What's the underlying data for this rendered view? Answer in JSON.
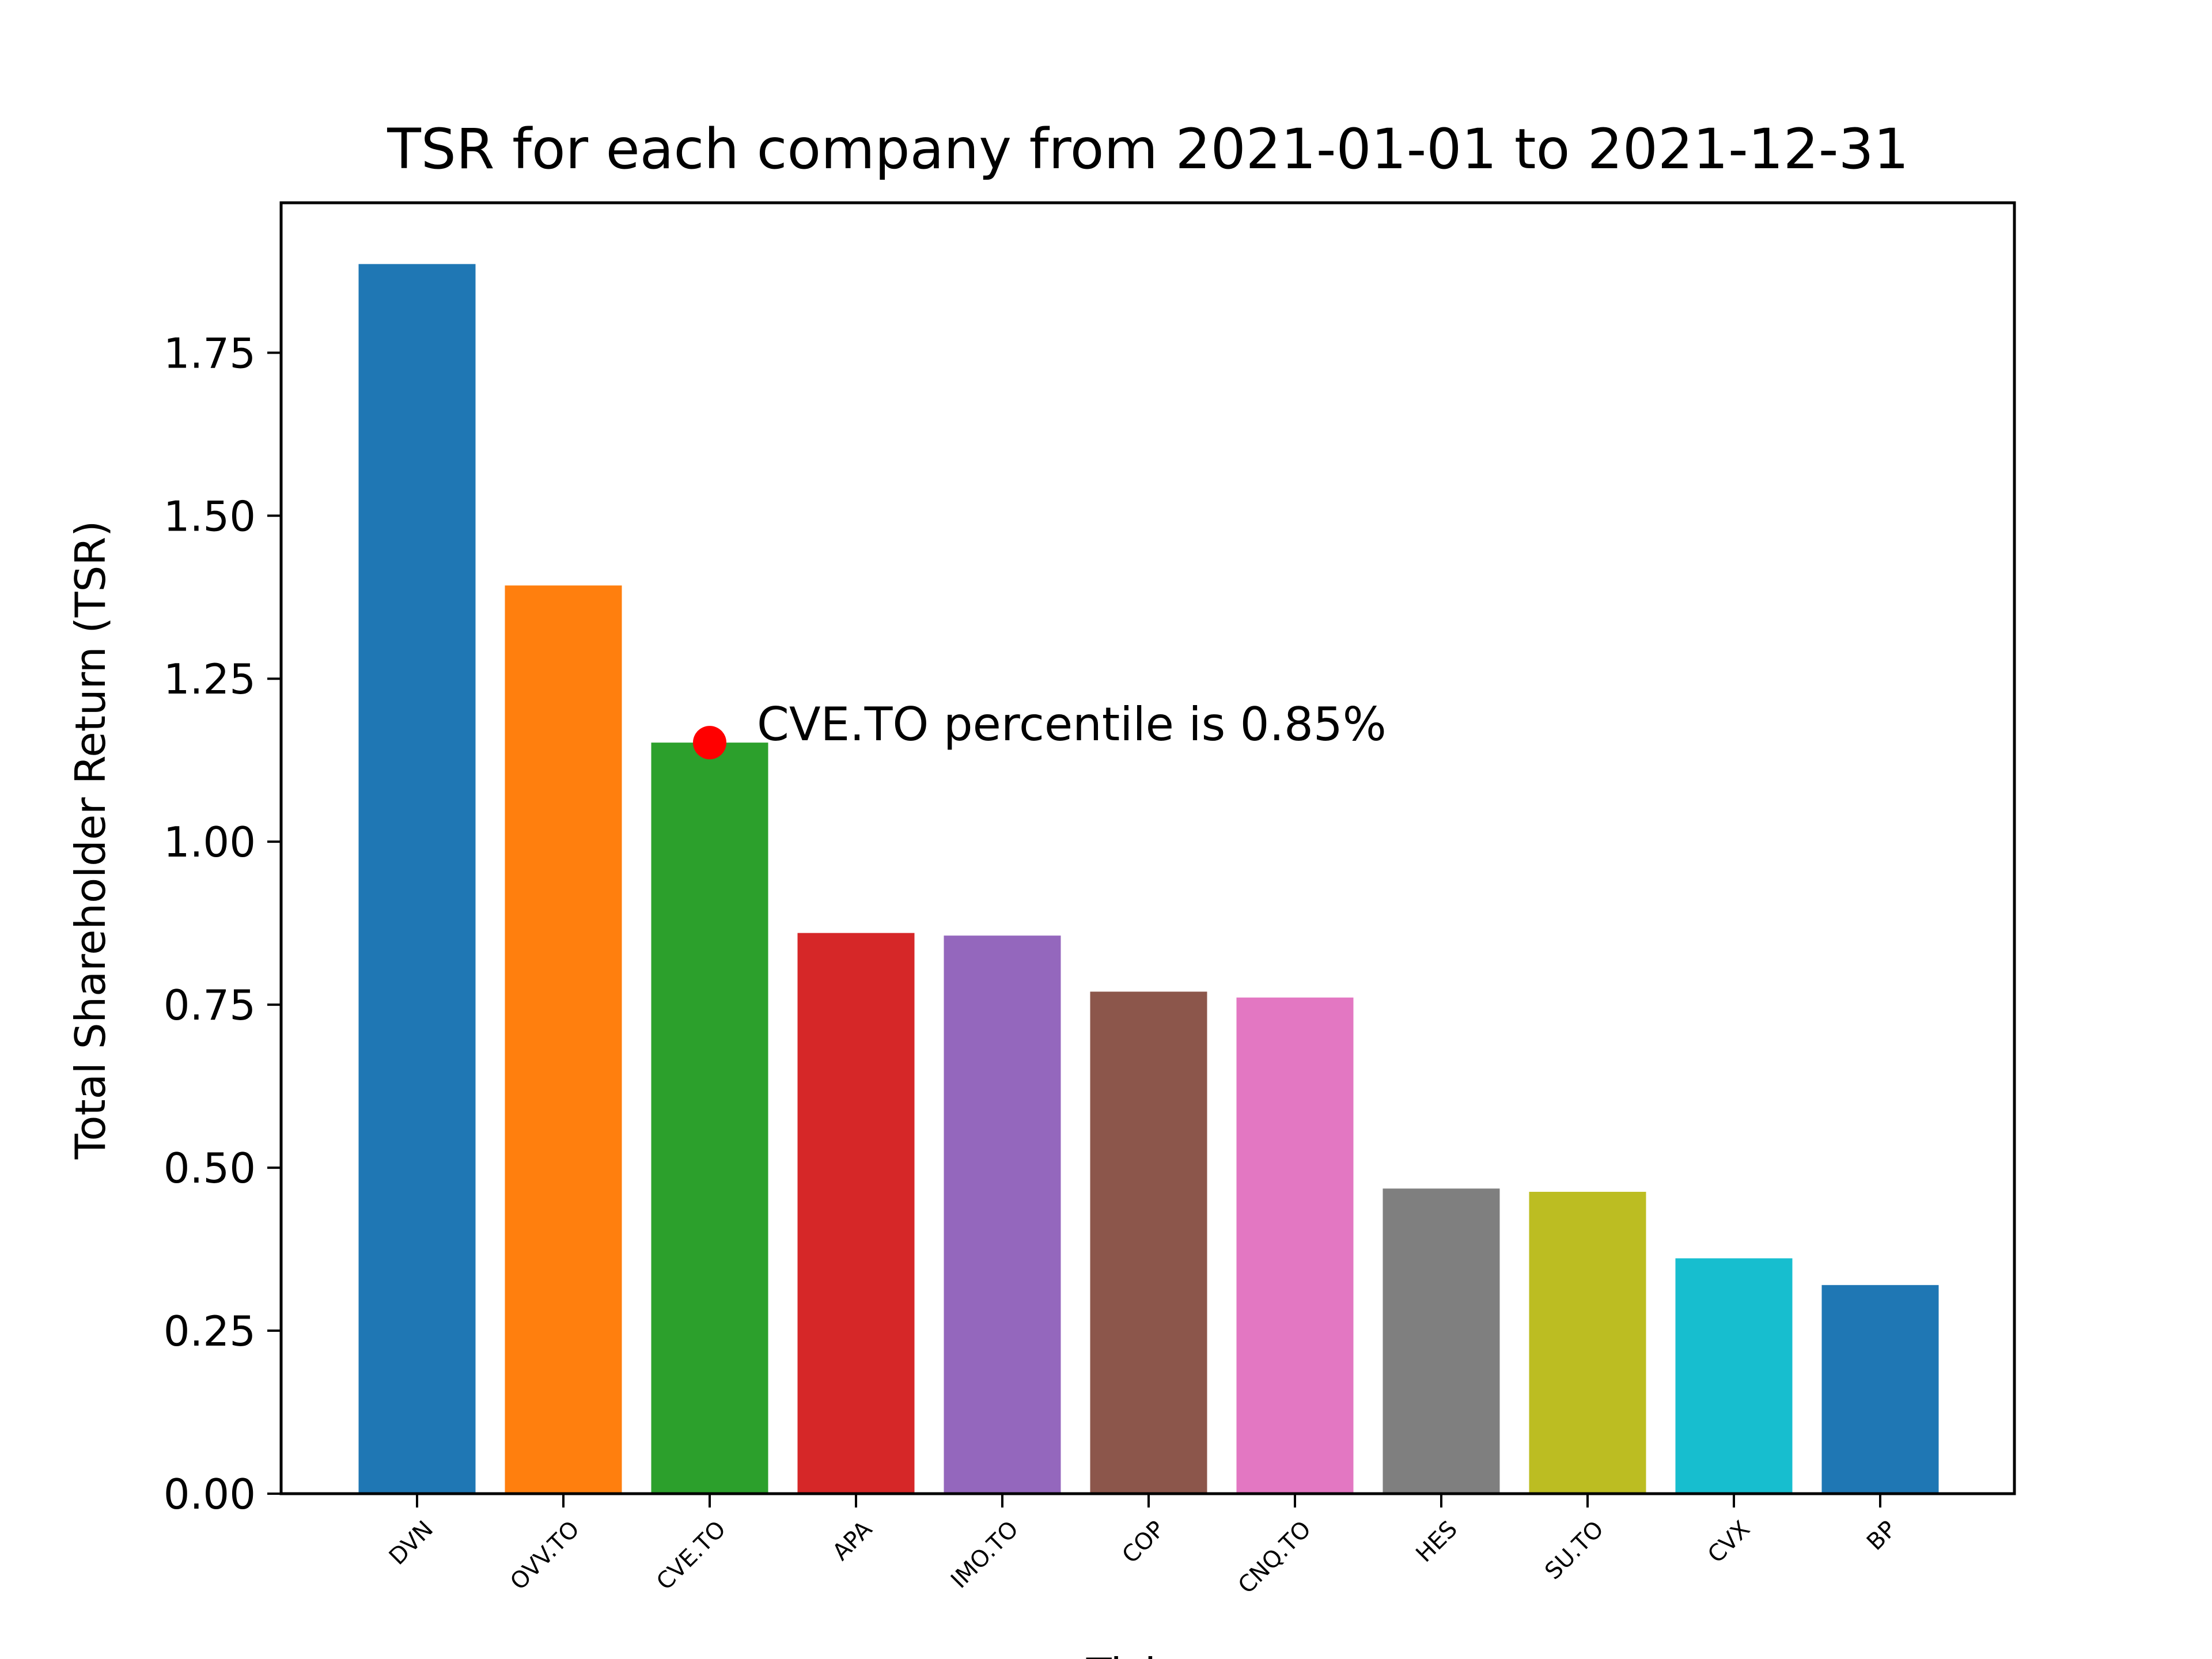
{
  "chart_data": {
    "type": "bar",
    "title": "TSR for each company from 2021-01-01 to 2021-12-31",
    "xlabel": "Ticker",
    "ylabel": "Total Shareholder Return (TSR)",
    "categories": [
      "DVN",
      "OVV.TO",
      "CVE.TO",
      "APA",
      "IMO.TO",
      "COP",
      "CNQ.TO",
      "HES",
      "SU.TO",
      "CVX",
      "BP"
    ],
    "values": [
      1.886,
      1.393,
      1.152,
      0.86,
      0.856,
      0.77,
      0.761,
      0.468,
      0.463,
      0.361,
      0.32
    ],
    "colors": [
      "#1f77b4",
      "#ff7f0e",
      "#2ca02c",
      "#d62728",
      "#9467bd",
      "#8c564b",
      "#e377c2",
      "#7f7f7f",
      "#bcbd22",
      "#17becf",
      "#1f77b4"
    ],
    "ylim": [
      0,
      1.98
    ],
    "yticks": [
      "0.00",
      "0.25",
      "0.50",
      "0.75",
      "1.00",
      "1.25",
      "1.50",
      "1.75"
    ],
    "grid": false,
    "highlight": {
      "category": "CVE.TO",
      "value": 1.152,
      "color": "#ff0000",
      "text": "CVE.TO percentile is 0.85%"
    }
  }
}
